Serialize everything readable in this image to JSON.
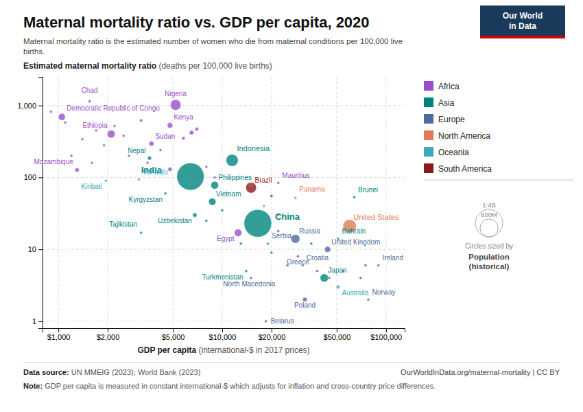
{
  "chart_data": {
    "type": "scatter",
    "title": "Maternal mortality ratio vs. GDP per capita, 2020",
    "subtitle": "Maternal mortality ratio is the estimated number of women who die from maternal conditions per 100,000 live\nbirths.",
    "y_label": "Estimated maternal mortality ratio (deaths per 100,000 live births)",
    "x_label": "GDP per capita (international-$ in 2017 prices)",
    "source": "Data source: UN MMEIG (2023); World Bank (2023)",
    "source_right": "OurWorldInData.org/maternal-mortality | CC BY",
    "note": "Note: GDP per capita is measured in constant international-$ which adjusts for inflation and cross-country price differences.",
    "logo": "Our World\nin Data",
    "log": true,
    "grid": true,
    "legend": "right",
    "xlim": [
      800,
      130000
    ],
    "xticks": [
      {
        "value": 1000,
        "label": "$1,000"
      },
      {
        "value": 2000,
        "label": "$2,000"
      },
      {
        "value": 5000,
        "label": "$5,000"
      },
      {
        "value": 10000,
        "label": "$10,000"
      },
      {
        "value": 20000,
        "label": "$20,000"
      },
      {
        "value": 50000,
        "label": "$50,000"
      },
      {
        "value": 100000,
        "label": "$100,000"
      }
    ],
    "ylim": [
      0.8,
      2500
    ],
    "yticks": [
      1,
      10,
      100,
      {
        "value": 1000,
        "label": "1,000"
      }
    ],
    "series": [
      {
        "name": "Africa",
        "color": "#9b4dca",
        "x": [
          1550,
          5200,
          1050,
          4800,
          2100,
          3700,
          1300,
          900,
          1100,
          1700,
          2500,
          2200,
          3200,
          1400,
          1900,
          2700,
          3500,
          4200,
          4800,
          5800,
          6500,
          7000,
          1200,
          1600,
          8000,
          9000,
          12500,
          22000
        ],
        "values": [
          1140,
          1020,
          693,
          530,
          401,
          295,
          127,
          820,
          580,
          450,
          380,
          520,
          620,
          340,
          280,
          200,
          160,
          240,
          130,
          350,
          420,
          470,
          200,
          160,
          140,
          100,
          17,
          84
        ],
        "sizes": [
          16000000,
          206000000,
          90000000,
          54000000,
          115000000,
          44000000,
          32000000,
          5000000,
          4000000,
          6000000,
          6000000,
          7000000,
          18000000,
          10000000,
          8000000,
          7000000,
          5000000,
          9000000,
          30000000,
          20000000,
          35000000,
          25000000,
          12000000,
          5000000,
          8000000,
          10000000,
          104000000,
          1300000
        ],
        "labels": [
          "Chad",
          "Nigeria",
          "Democratic Republic of Congo",
          "Kenya",
          "Ethiopia",
          "Sudan",
          "Mozambique",
          null,
          null,
          null,
          null,
          null,
          null,
          null,
          null,
          null,
          null,
          null,
          null,
          null,
          null,
          null,
          null,
          null,
          null,
          null,
          "Egypt",
          "Mauritius"
        ]
      },
      {
        "name": "Asia",
        "color": "#00847e",
        "x": [
          6400,
          11500,
          9000,
          8700,
          16500,
          3600,
          4500,
          6800,
          3200,
          14000,
          42000,
          51000,
          64000,
          8000,
          10000,
          13000,
          20000,
          35000,
          75000
        ],
        "values": [
          103,
          173,
          78,
          46,
          23,
          186,
          60,
          30,
          17,
          5,
          4,
          14,
          53,
          25,
          35,
          12,
          9,
          12,
          6
        ],
        "sizes": [
          1380000000,
          273000000,
          110000000,
          97000000,
          1411000000,
          29000000,
          6500000,
          35000000,
          9500000,
          6000000,
          126000000,
          1700000,
          440000,
          15000000,
          8000000,
          5000000,
          5000000,
          5000000,
          5000000
        ],
        "labels": [
          "India",
          "Indonesia",
          "Philippines",
          "Vietnam",
          "China",
          "Nepal",
          "Kyrgyzstan",
          "Uzbekistan",
          "Tajikistan",
          "Turkmenistan",
          "Japan",
          "Bahrain",
          "Brunei",
          null,
          null,
          null,
          null,
          null,
          null
        ]
      },
      {
        "name": "Europe",
        "color": "#4c6a9c",
        "x": [
          28000,
          44000,
          90000,
          78000,
          32000,
          19000,
          29000,
          31000,
          15000,
          18500,
          22000,
          38000,
          45000,
          55000,
          70000,
          25000
        ],
        "values": [
          14,
          10,
          6,
          2,
          2,
          12,
          8,
          6,
          4,
          1,
          18,
          5,
          4,
          5,
          4,
          6
        ],
        "sizes": [
          144000000,
          67000000,
          5000000,
          5400000,
          38000000,
          7000000,
          10700000,
          4000000,
          2100000,
          9500000,
          5000000,
          5000000,
          5000000,
          5000000,
          5000000,
          5000000
        ],
        "labels": [
          "Russia",
          "United Kingdom",
          "Ireland",
          "Norway",
          "Poland",
          "Serbia",
          "Greece",
          "Croatia",
          "North Macedonia",
          "Belarus",
          null,
          null,
          null,
          null,
          null,
          null
        ]
      },
      {
        "name": "North America",
        "color": "#e07b54",
        "x": [
          60000,
          28000,
          18000,
          22000
        ],
        "values": [
          21,
          52,
          40,
          30
        ],
        "sizes": [
          331000000,
          4300000,
          8000000,
          5000000
        ],
        "labels": [
          "United States",
          "Panama",
          null,
          null
        ]
      },
      {
        "name": "Oceania",
        "color": "#38aaba",
        "x": [
          51000,
          3100,
          1950
        ],
        "values": [
          3,
          94,
          90
        ],
        "sizes": [
          25700000,
          320000,
          120000
        ],
        "labels": [
          "Australia",
          "Vanuatu",
          "Kiribati"
        ]
      },
      {
        "name": "South America",
        "color": "#8b1a1a",
        "x": [
          15000,
          20000,
          15000
        ],
        "values": [
          72,
          55,
          80
        ],
        "sizes": [
          213000000,
          6000000,
          5000000
        ],
        "labels": [
          "Brazil",
          null,
          null
        ]
      }
    ],
    "size_legend": [
      {
        "value": 1400000000,
        "label": "1:4B"
      },
      {
        "value": 600000000,
        "label": "600M"
      }
    ],
    "size_legend_title": "Circles sized by",
    "size_legend_subtitle": "Population\n(historical)"
  }
}
